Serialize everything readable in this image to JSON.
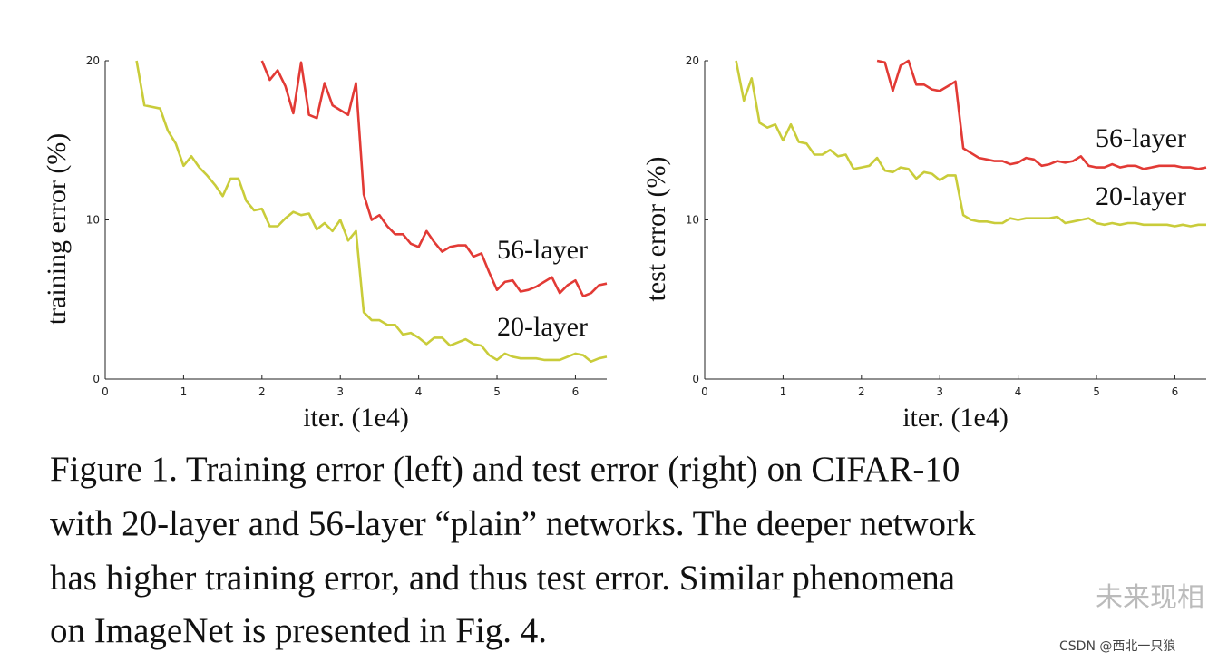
{
  "chart_data": [
    {
      "type": "line",
      "xlabel": "iter. (1e4)",
      "ylabel": "training error (%)",
      "xlim": [
        0,
        6.4
      ],
      "ylim": [
        0,
        20
      ],
      "xticks": [
        0,
        1,
        2,
        3,
        4,
        5,
        6
      ],
      "yticks": [
        0,
        10,
        20
      ],
      "x": [
        0.4,
        0.5,
        0.6,
        0.7,
        0.8,
        0.9,
        1.0,
        1.1,
        1.2,
        1.3,
        1.4,
        1.5,
        1.6,
        1.7,
        1.8,
        1.9,
        2.0,
        2.1,
        2.2,
        2.3,
        2.4,
        2.5,
        2.6,
        2.7,
        2.8,
        2.9,
        3.0,
        3.1,
        3.2,
        3.3,
        3.4,
        3.5,
        3.6,
        3.7,
        3.8,
        3.9,
        4.0,
        4.1,
        4.2,
        4.3,
        4.4,
        4.5,
        4.6,
        4.7,
        4.8,
        4.9,
        5.0,
        5.1,
        5.2,
        5.3,
        5.4,
        5.5,
        5.6,
        5.7,
        5.8,
        5.9,
        6.0,
        6.1,
        6.2,
        6.3,
        6.4
      ],
      "series": [
        {
          "name": "56-layer",
          "color": "#e23a35",
          "values": [
            null,
            null,
            null,
            null,
            null,
            null,
            null,
            null,
            null,
            null,
            null,
            null,
            null,
            null,
            null,
            null,
            20,
            18.8,
            19.4,
            18.4,
            16.7,
            19.9,
            16.6,
            16.4,
            18.6,
            17.2,
            16.9,
            16.6,
            18.6,
            11.6,
            10.0,
            10.3,
            9.6,
            9.1,
            9.1,
            8.5,
            8.3,
            9.3,
            8.6,
            8.0,
            8.3,
            8.4,
            8.4,
            7.7,
            7.9,
            6.7,
            5.6,
            6.1,
            6.2,
            5.5,
            5.6,
            5.8,
            6.1,
            6.4,
            5.4,
            5.9,
            6.2,
            5.2,
            5.4,
            5.9,
            6.0
          ]
        },
        {
          "name": "20-layer",
          "color": "#c9cc3a",
          "values": [
            20,
            17.2,
            17.1,
            17.0,
            15.6,
            14.8,
            13.4,
            14.0,
            13.3,
            12.8,
            12.2,
            11.5,
            12.6,
            12.6,
            11.2,
            10.6,
            10.7,
            9.6,
            9.6,
            10.1,
            10.5,
            10.3,
            10.4,
            9.4,
            9.8,
            9.3,
            10.0,
            8.7,
            9.3,
            4.2,
            3.7,
            3.7,
            3.4,
            3.4,
            2.8,
            2.9,
            2.6,
            2.2,
            2.6,
            2.6,
            2.1,
            2.3,
            2.5,
            2.2,
            2.1,
            1.5,
            1.2,
            1.6,
            1.4,
            1.3,
            1.3,
            1.3,
            1.2,
            1.2,
            1.2,
            1.4,
            1.6,
            1.5,
            1.1,
            1.3,
            1.4
          ]
        }
      ]
    },
    {
      "type": "line",
      "xlabel": "iter. (1e4)",
      "ylabel": "test error (%)",
      "xlim": [
        0,
        6.4
      ],
      "ylim": [
        0,
        20
      ],
      "xticks": [
        0,
        1,
        2,
        3,
        4,
        5,
        6
      ],
      "yticks": [
        0,
        10,
        20
      ],
      "x": [
        0.4,
        0.5,
        0.6,
        0.7,
        0.8,
        0.9,
        1.0,
        1.1,
        1.2,
        1.3,
        1.4,
        1.5,
        1.6,
        1.7,
        1.8,
        1.9,
        2.0,
        2.1,
        2.2,
        2.3,
        2.4,
        2.5,
        2.6,
        2.7,
        2.8,
        2.9,
        3.0,
        3.1,
        3.2,
        3.3,
        3.4,
        3.5,
        3.6,
        3.7,
        3.8,
        3.9,
        4.0,
        4.1,
        4.2,
        4.3,
        4.4,
        4.5,
        4.6,
        4.7,
        4.8,
        4.9,
        5.0,
        5.1,
        5.2,
        5.3,
        5.4,
        5.5,
        5.6,
        5.7,
        5.8,
        5.9,
        6.0,
        6.1,
        6.2,
        6.3,
        6.4
      ],
      "series": [
        {
          "name": "56-layer",
          "color": "#e23a35",
          "values": [
            null,
            null,
            null,
            null,
            null,
            null,
            null,
            null,
            null,
            null,
            null,
            null,
            null,
            null,
            null,
            null,
            null,
            null,
            20,
            19.9,
            18.1,
            19.7,
            20.0,
            18.5,
            18.5,
            18.2,
            18.1,
            18.4,
            18.7,
            14.5,
            14.2,
            13.9,
            13.8,
            13.7,
            13.7,
            13.5,
            13.6,
            13.9,
            13.8,
            13.4,
            13.5,
            13.7,
            13.6,
            13.7,
            14.0,
            13.4,
            13.3,
            13.3,
            13.5,
            13.3,
            13.4,
            13.4,
            13.2,
            13.3,
            13.4,
            13.4,
            13.4,
            13.3,
            13.3,
            13.2,
            13.3
          ]
        },
        {
          "name": "20-layer",
          "color": "#c9cc3a",
          "values": [
            20,
            17.5,
            18.9,
            16.1,
            15.8,
            16.0,
            15.0,
            16.0,
            14.9,
            14.8,
            14.1,
            14.1,
            14.4,
            14.0,
            14.1,
            13.2,
            13.3,
            13.4,
            13.9,
            13.1,
            13.0,
            13.3,
            13.2,
            12.6,
            13.0,
            12.9,
            12.5,
            12.8,
            12.8,
            10.3,
            10.0,
            9.9,
            9.9,
            9.8,
            9.8,
            10.1,
            10.0,
            10.1,
            10.1,
            10.1,
            10.1,
            10.2,
            9.8,
            9.9,
            10.0,
            10.1,
            9.8,
            9.7,
            9.8,
            9.7,
            9.8,
            9.8,
            9.7,
            9.7,
            9.7,
            9.7,
            9.6,
            9.7,
            9.6,
            9.7,
            9.7
          ]
        }
      ]
    }
  ],
  "caption": [
    "Figure 1. Training error (left) and test error (right) on CIFAR-10",
    "with 20-layer and 56-layer “plain” networks. The deeper network",
    "has higher training error, and thus test error.  Similar phenomena",
    "on ImageNet is presented in Fig. 4."
  ],
  "watermark": {
    "account": "未来现相",
    "source": "CSDN @西北一只狼"
  }
}
